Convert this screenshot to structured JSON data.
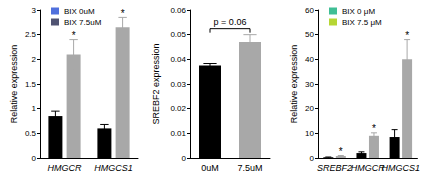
{
  "chart_data": [
    {
      "type": "bar",
      "y_label": "Relative expression",
      "categories": [
        "HMGCR",
        "HMGCS1"
      ],
      "ylim": [
        0,
        3
      ],
      "yticks": [
        0,
        0.5,
        1,
        1.5,
        2,
        2.5,
        3
      ],
      "legend": "upper left",
      "series": [
        {
          "name": "BIX 0uM",
          "color": "#000000",
          "values": [
            0.85,
            0.6
          ],
          "errors": [
            0.1,
            0.08
          ]
        },
        {
          "name": "BIX 7.5uM",
          "color": "#a8a8a8",
          "values": [
            2.1,
            2.65
          ],
          "errors": [
            0.3,
            0.2
          ],
          "annotations": [
            "*",
            "*"
          ]
        }
      ]
    },
    {
      "type": "bar",
      "y_label": "SREBF2 expression",
      "categories": [
        "0uM",
        "7.5uM"
      ],
      "ylim": [
        0,
        0.06
      ],
      "yticks": [
        0,
        0.01,
        0.02,
        0.03,
        0.04,
        0.05,
        0.06
      ],
      "values": [
        0.0375,
        0.047
      ],
      "errors": [
        0.0008,
        0.003
      ],
      "colors": [
        "#000000",
        "#a8a8a8"
      ],
      "annotations": [
        {
          "text": "p = 0.06",
          "from": "0uM",
          "to": "7.5uM"
        }
      ]
    },
    {
      "type": "bar",
      "y_label": "Relative expression",
      "categories": [
        "SREBF2",
        "HMGCR",
        "HMGCS1"
      ],
      "ylim": [
        0,
        60
      ],
      "yticks": [
        0,
        10,
        20,
        30,
        40,
        50,
        60
      ],
      "legend": "upper left",
      "series": [
        {
          "name": "BIX 0 μM",
          "color": "#000000",
          "values": [
            0.3,
            2,
            8.5
          ],
          "errors": [
            0.1,
            0.5,
            3
          ]
        },
        {
          "name": "BIX 7.5 μM",
          "color": "#a8a8a8",
          "values": [
            0.8,
            9,
            40
          ],
          "errors": [
            0.2,
            1.2,
            8
          ],
          "annotations": [
            "*",
            "*",
            "*"
          ]
        }
      ]
    }
  ]
}
